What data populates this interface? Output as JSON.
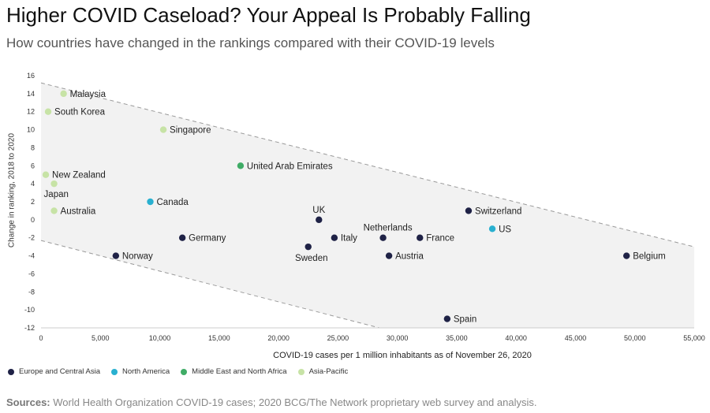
{
  "title": "Higher COVID Caseload? Your Appeal Is Probably Falling",
  "subtitle": "How countries have changed in the rankings compared with their COVID-19 levels",
  "chart_data": {
    "type": "scatter",
    "xlabel": "COVID-19 cases per 1 million inhabitants as of November 26, 2020",
    "ylabel": "Change in ranking, 2018 to 2020",
    "xlim": [
      0,
      55000
    ],
    "ylim": [
      -12,
      16
    ],
    "x_ticks": [
      0,
      5000,
      10000,
      15000,
      20000,
      25000,
      30000,
      35000,
      40000,
      45000,
      50000,
      55000
    ],
    "x_tick_labels": [
      "0",
      "5,000",
      "10,000",
      "15,000",
      "20,000",
      "25,000",
      "30,000",
      "35,000",
      "40,000",
      "45,000",
      "50,000",
      "55,000"
    ],
    "y_ticks": [
      -12,
      -10,
      -8,
      -6,
      -4,
      -2,
      0,
      2,
      4,
      6,
      8,
      10,
      12,
      14,
      16
    ],
    "y_tick_labels": [
      "-12",
      "-10",
      "-8",
      "-6",
      "-4",
      "-2",
      "0",
      "2",
      "4",
      "6",
      "8",
      "10",
      "12",
      "14",
      "16"
    ],
    "trend_band": {
      "upper": [
        [
          0,
          15.2
        ],
        [
          55000,
          -3
        ]
      ],
      "lower": [
        [
          0,
          -2.3
        ],
        [
          28500,
          -12
        ]
      ]
    },
    "series": [
      {
        "name": "Europe and Central Asia",
        "color": "#1f2246",
        "points": [
          {
            "label": "Norway",
            "x": 6300,
            "y": -4
          },
          {
            "label": "Germany",
            "x": 11900,
            "y": -2
          },
          {
            "label": "Sweden",
            "x": 22500,
            "y": -3
          },
          {
            "label": "UK",
            "x": 23400,
            "y": 0
          },
          {
            "label": "Italy",
            "x": 24700,
            "y": -2
          },
          {
            "label": "Netherlands",
            "x": 28800,
            "y": -2
          },
          {
            "label": "Austria",
            "x": 29300,
            "y": -4
          },
          {
            "label": "France",
            "x": 31900,
            "y": -2
          },
          {
            "label": "Switzerland",
            "x": 36000,
            "y": 1
          },
          {
            "label": "Spain",
            "x": 34200,
            "y": -11
          },
          {
            "label": "Belgium",
            "x": 49300,
            "y": -4
          }
        ]
      },
      {
        "name": "North America",
        "color": "#29b0d0",
        "points": [
          {
            "label": "Canada",
            "x": 9200,
            "y": 2
          },
          {
            "label": "US",
            "x": 38000,
            "y": -1
          }
        ]
      },
      {
        "name": "Middle East and North Africa",
        "color": "#3fac66",
        "points": [
          {
            "label": "United Arab Emirates",
            "x": 16800,
            "y": 6
          }
        ]
      },
      {
        "name": "Asia-Pacific",
        "color": "#c7e3a6",
        "points": [
          {
            "label": "Malaysia",
            "x": 1900,
            "y": 14
          },
          {
            "label": "South Korea",
            "x": 600,
            "y": 12
          },
          {
            "label": "Singapore",
            "x": 10300,
            "y": 10
          },
          {
            "label": "New Zealand",
            "x": 400,
            "y": 5
          },
          {
            "label": "Japan",
            "x": 1100,
            "y": 4
          },
          {
            "label": "Australia",
            "x": 1100,
            "y": 1
          }
        ]
      }
    ]
  },
  "sources": {
    "label": "Sources:",
    "text": "World Health Organization COVID-19 cases; 2020 BCG/The Network proprietary web survey and analysis."
  }
}
